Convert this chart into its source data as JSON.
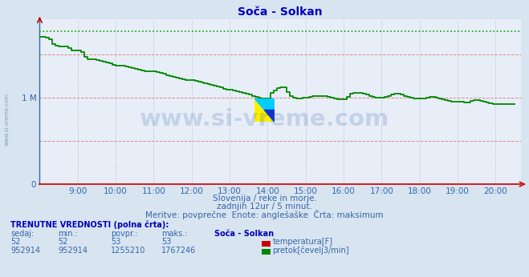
{
  "title": "Soča - Solkan",
  "bg_color": "#d8e4f0",
  "plot_bg_color": "#e8eef8",
  "title_color": "#0000bb",
  "text_color": "#3366aa",
  "grid_color_h": "#dd8888",
  "grid_color_v": "#aabbcc",
  "temp_color": "#cc0000",
  "flow_color": "#008800",
  "flow_max_color": "#00aa00",
  "watermark": "www.si-vreme.com",
  "watermark_color": "#2255aa",
  "watermark_alpha": 0.18,
  "ylim": [
    0,
    1900000
  ],
  "y_max_data": 1767246,
  "xlim": [
    8.0,
    20.67
  ],
  "ytick_vals": [
    0,
    1000000
  ],
  "ytick_labels": [
    "0",
    "1 M"
  ],
  "xtick_vals": [
    9,
    10,
    11,
    12,
    13,
    14,
    15,
    16,
    17,
    18,
    19,
    20
  ],
  "xtick_labels": [
    "9:00",
    "10:00",
    "11:00",
    "12:00",
    "13:00",
    "14:00",
    "15:00",
    "16:00",
    "17:00",
    "18:00",
    "19:00",
    "20:00"
  ],
  "subtitle1": "Slovenija / reke in morje.",
  "subtitle2": "zadnjih 12ur / 5 minut.",
  "subtitle3": "Meritve: povprečne  Enote: anglešaške  Črta: maksimum",
  "legend_title": "TRENUTNE VREDNOSTI (polna črta):",
  "legend_cols": [
    "sedaj:",
    "min.:",
    "povpr.:",
    "maks.:",
    "Soča - Solkan"
  ],
  "legend_row1": [
    "52",
    "52",
    "53",
    "53",
    "temperatura[F]"
  ],
  "legend_row2": [
    "952914",
    "952914",
    "1255210",
    "1767246",
    "pretok[čevelj3/min]"
  ],
  "temp_val": 52,
  "flow_x": [
    8.0,
    8.08,
    8.17,
    8.25,
    8.33,
    8.42,
    8.5,
    8.58,
    8.67,
    8.75,
    8.83,
    8.92,
    9.0,
    9.08,
    9.17,
    9.25,
    9.33,
    9.42,
    9.5,
    9.58,
    9.67,
    9.75,
    9.83,
    9.92,
    10.0,
    10.08,
    10.17,
    10.25,
    10.33,
    10.42,
    10.5,
    10.58,
    10.67,
    10.75,
    10.83,
    10.92,
    11.0,
    11.08,
    11.17,
    11.25,
    11.33,
    11.42,
    11.5,
    11.58,
    11.67,
    11.75,
    11.83,
    11.92,
    12.0,
    12.08,
    12.17,
    12.25,
    12.33,
    12.42,
    12.5,
    12.58,
    12.67,
    12.75,
    12.83,
    12.92,
    13.0,
    13.08,
    13.17,
    13.25,
    13.33,
    13.42,
    13.5,
    13.58,
    13.67,
    13.75,
    13.83,
    13.92,
    14.0,
    14.08,
    14.17,
    14.25,
    14.33,
    14.42,
    14.5,
    14.58,
    14.67,
    14.75,
    14.83,
    14.92,
    15.0,
    15.08,
    15.17,
    15.25,
    15.33,
    15.42,
    15.5,
    15.58,
    15.67,
    15.75,
    15.83,
    15.92,
    16.0,
    16.08,
    16.17,
    16.25,
    16.33,
    16.42,
    16.5,
    16.58,
    16.67,
    16.75,
    16.83,
    16.92,
    17.0,
    17.08,
    17.17,
    17.25,
    17.33,
    17.42,
    17.5,
    17.58,
    17.67,
    17.75,
    17.83,
    17.92,
    18.0,
    18.08,
    18.17,
    18.25,
    18.33,
    18.42,
    18.5,
    18.58,
    18.67,
    18.75,
    18.83,
    18.92,
    19.0,
    19.08,
    19.17,
    19.25,
    19.33,
    19.42,
    19.5,
    19.58,
    19.67,
    19.75,
    19.83,
    19.92,
    20.0,
    20.17,
    20.5
  ],
  "flow_y": [
    1700000,
    1700000,
    1690000,
    1670000,
    1620000,
    1600000,
    1590000,
    1590000,
    1590000,
    1570000,
    1540000,
    1540000,
    1540000,
    1520000,
    1470000,
    1440000,
    1440000,
    1440000,
    1430000,
    1420000,
    1410000,
    1400000,
    1390000,
    1380000,
    1370000,
    1370000,
    1370000,
    1360000,
    1350000,
    1340000,
    1330000,
    1320000,
    1310000,
    1300000,
    1300000,
    1300000,
    1300000,
    1290000,
    1280000,
    1270000,
    1260000,
    1250000,
    1240000,
    1230000,
    1220000,
    1210000,
    1200000,
    1200000,
    1200000,
    1195000,
    1185000,
    1175000,
    1165000,
    1155000,
    1145000,
    1135000,
    1125000,
    1115000,
    1100000,
    1090000,
    1090000,
    1080000,
    1070000,
    1060000,
    1050000,
    1040000,
    1030000,
    1020000,
    1010000,
    1000000,
    990000,
    985000,
    985000,
    1050000,
    1080000,
    1110000,
    1120000,
    1120000,
    1060000,
    1020000,
    1000000,
    990000,
    990000,
    1000000,
    1000000,
    1010000,
    1020000,
    1020000,
    1020000,
    1020000,
    1020000,
    1010000,
    1000000,
    990000,
    980000,
    975000,
    975000,
    1010000,
    1040000,
    1050000,
    1050000,
    1050000,
    1040000,
    1030000,
    1020000,
    1010000,
    1000000,
    995000,
    1000000,
    1010000,
    1020000,
    1030000,
    1040000,
    1040000,
    1030000,
    1020000,
    1010000,
    1000000,
    990000,
    985000,
    985000,
    990000,
    1000000,
    1010000,
    1010000,
    1000000,
    990000,
    980000,
    970000,
    960000,
    955000,
    955000,
    955000,
    950000,
    945000,
    945000,
    960000,
    970000,
    970000,
    960000,
    950000,
    940000,
    930000,
    920000,
    920000,
    920000,
    920000
  ]
}
